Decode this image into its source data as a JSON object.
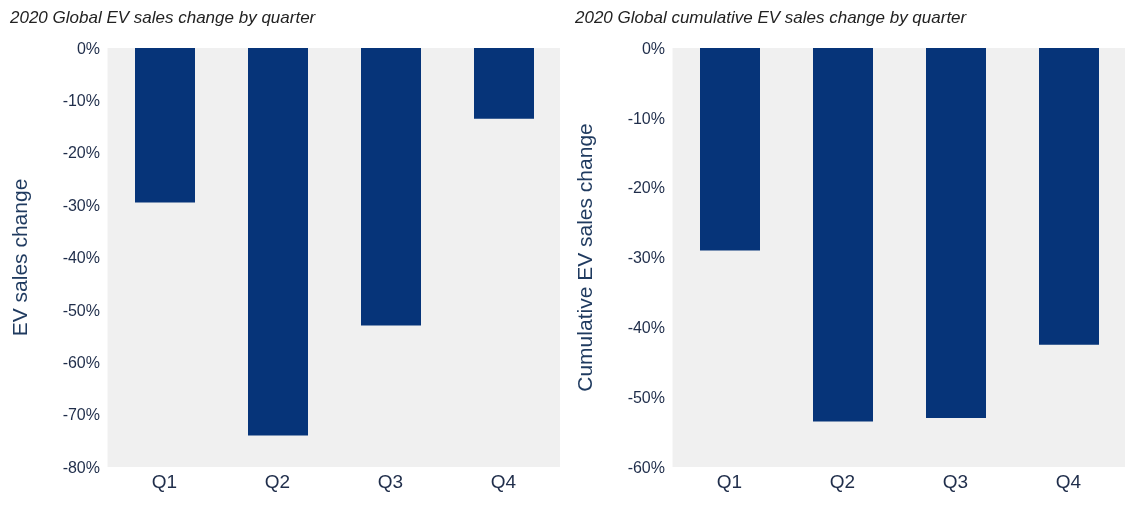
{
  "chart_data": [
    {
      "type": "bar",
      "title": "2020 Global EV sales change by quarter",
      "ylabel": "EV sales change",
      "categories": [
        "Q1",
        "Q2",
        "Q3",
        "Q4"
      ],
      "values": [
        -29.5,
        -74,
        -53,
        -13.5
      ],
      "color": "#063479",
      "ylim": [
        -80,
        0
      ],
      "yticks": [
        {
          "value": -80,
          "label": "-80%"
        },
        {
          "value": -70,
          "label": "-70%"
        },
        {
          "value": -60,
          "label": "-60%"
        },
        {
          "value": -50,
          "label": "-50%"
        },
        {
          "value": -40,
          "label": "-40%"
        },
        {
          "value": -30,
          "label": "-30%"
        },
        {
          "value": -20,
          "label": "-20%"
        },
        {
          "value": -10,
          "label": "-10%"
        },
        {
          "value": 0,
          "label": "0%"
        }
      ]
    },
    {
      "type": "bar",
      "title": "2020 Global cumulative EV sales change by quarter",
      "ylabel": "Cumulative EV sales change",
      "categories": [
        "Q1",
        "Q2",
        "Q3",
        "Q4"
      ],
      "values": [
        -29,
        -53.5,
        -53,
        -42.5
      ],
      "color": "#063479",
      "ylim": [
        -60,
        0
      ],
      "yticks": [
        {
          "value": -60,
          "label": "-60%"
        },
        {
          "value": -50,
          "label": "-50%"
        },
        {
          "value": -40,
          "label": "-40%"
        },
        {
          "value": -30,
          "label": "-30%"
        },
        {
          "value": -20,
          "label": "-20%"
        },
        {
          "value": -10,
          "label": "-10%"
        },
        {
          "value": 0,
          "label": "0%"
        }
      ]
    }
  ]
}
